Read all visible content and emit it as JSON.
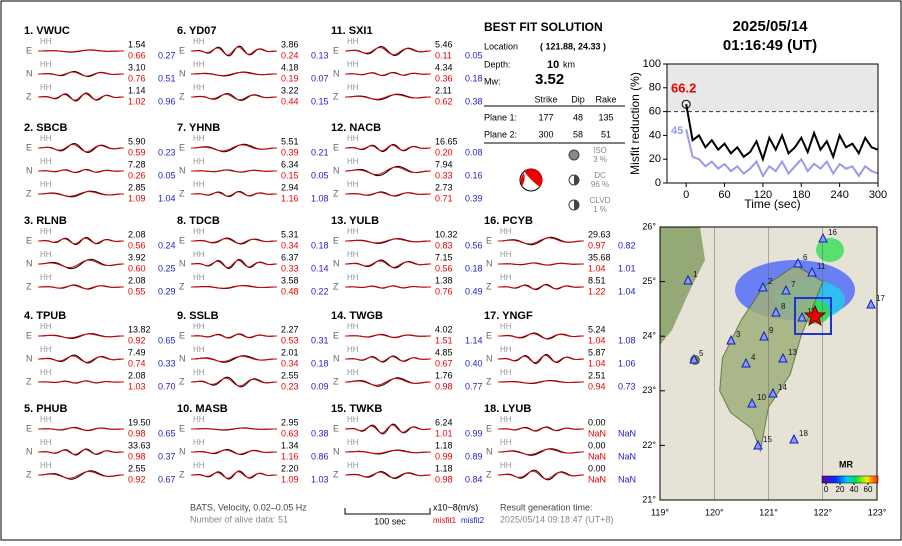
{
  "stations": [
    {
      "label": "1.  VWUC",
      "rows": [
        [
          "1.54",
          "0.66",
          "0.27"
        ],
        [
          "3.10",
          "0.76",
          "0.51"
        ],
        [
          "1.14",
          "1.02",
          "0.96"
        ]
      ]
    },
    {
      "label": "2.  SBCB",
      "rows": [
        [
          "5.90",
          "0.59",
          "0.23"
        ],
        [
          "7.28",
          "0.26",
          "0.05"
        ],
        [
          "2.85",
          "1.09",
          "1.04"
        ]
      ]
    },
    {
      "label": "3.  RLNB",
      "rows": [
        [
          "2.08",
          "0.56",
          "0.24"
        ],
        [
          "3.92",
          "0.60",
          "0.25"
        ],
        [
          "2.08",
          "0.55",
          "0.29"
        ]
      ]
    },
    {
      "label": "4.  TPUB",
      "rows": [
        [
          "13.82",
          "0.92",
          "0.65"
        ],
        [
          "7.49",
          "0.74",
          "0.33"
        ],
        [
          "2.08",
          "1.03",
          "0.70"
        ]
      ]
    },
    {
      "label": "5.  PHUB",
      "rows": [
        [
          "19.50",
          "0.98",
          "0.65"
        ],
        [
          "33.63",
          "0.98",
          "0.37"
        ],
        [
          "2.55",
          "0.92",
          "0.67"
        ]
      ]
    },
    {
      "label": "6.  YD07",
      "rows": [
        [
          "3.86",
          "0.24",
          "0.13"
        ],
        [
          "4.18",
          "0.19",
          "0.07"
        ],
        [
          "3.22",
          "0.44",
          "0.15"
        ]
      ]
    },
    {
      "label": "7.  YHNB",
      "rows": [
        [
          "5.51",
          "0.39",
          "0.21"
        ],
        [
          "6.34",
          "0.15",
          "0.05"
        ],
        [
          "2.94",
          "1.16",
          "1.08"
        ]
      ]
    },
    {
      "label": "8.  TDCB",
      "rows": [
        [
          "5.31",
          "0.34",
          "0.18"
        ],
        [
          "6.37",
          "0.33",
          "0.14"
        ],
        [
          "3.58",
          "0.48",
          "0.22"
        ]
      ]
    },
    {
      "label": "9.  SSLB",
      "rows": [
        [
          "2.27",
          "0.53",
          "0.31"
        ],
        [
          "2.01",
          "0.34",
          "0.18"
        ],
        [
          "2.55",
          "0.23",
          "0.09"
        ]
      ]
    },
    {
      "label": "10.  MASB",
      "rows": [
        [
          "2.95",
          "0.63",
          "0.38"
        ],
        [
          "1.34",
          "1.16",
          "0.86"
        ],
        [
          "2.20",
          "1.09",
          "1.03"
        ]
      ]
    },
    {
      "label": "11.  SXI1",
      "rows": [
        [
          "5.46",
          "0.11",
          "0.05"
        ],
        [
          "4.34",
          "0.36",
          "0.18"
        ],
        [
          "2.11",
          "0.62",
          "0.38"
        ]
      ]
    },
    {
      "label": "12.  NACB",
      "rows": [
        [
          "16.65",
          "0.20",
          "0.08"
        ],
        [
          "7.94",
          "0.33",
          "0.16"
        ],
        [
          "2.73",
          "0.71",
          "0.39"
        ]
      ]
    },
    {
      "label": "13.  YULB",
      "rows": [
        [
          "10.32",
          "0.83",
          "0.56"
        ],
        [
          "7.15",
          "0.56",
          "0.18"
        ],
        [
          "1.38",
          "0.76",
          "0.49"
        ]
      ]
    },
    {
      "label": "14.  TWGB",
      "rows": [
        [
          "4.02",
          "1.51",
          "1.14"
        ],
        [
          "4.85",
          "0.67",
          "0.40"
        ],
        [
          "1.76",
          "0.98",
          "0.77"
        ]
      ]
    },
    {
      "label": "15.  TWKB",
      "rows": [
        [
          "6.24",
          "1.01",
          "0.99"
        ],
        [
          "1.18",
          "0.99",
          "0.89"
        ],
        [
          "1.18",
          "0.98",
          "0.84"
        ]
      ]
    },
    {
      "label": "16.  PCYB",
      "rows": [
        [
          "29.63",
          "0.97",
          "0.82"
        ],
        [
          "35.68",
          "1.04",
          "1.01"
        ],
        [
          "8.51",
          "1.22",
          "1.04"
        ]
      ]
    },
    {
      "label": "17.  YNGF",
      "rows": [
        [
          "5.24",
          "1.04",
          "1.08"
        ],
        [
          "5.87",
          "1.04",
          "1.06"
        ],
        [
          "2.51",
          "0.94",
          "0.73"
        ]
      ]
    },
    {
      "label": "18.  LYUB",
      "rows": [
        [
          "0.00",
          "NaN",
          "NaN"
        ],
        [
          "0.00",
          "NaN",
          "NaN"
        ],
        [
          "0.00",
          "NaN",
          "NaN"
        ]
      ]
    }
  ],
  "components": [
    "E",
    "N",
    "Z"
  ],
  "channel": "HH",
  "solution": {
    "title": "BEST FIT SOLUTION",
    "location_label": "Location",
    "location": "( 121.88,  24.33 )",
    "depth_label": "Depth:",
    "depth": "10",
    "depth_unit": "km",
    "mw_label": "Mw:",
    "mw": "3.52",
    "headers": [
      "Strike",
      "Dip",
      "Rake"
    ],
    "planes": [
      {
        "label": "Plane 1:",
        "values": [
          "177",
          "48",
          "135"
        ]
      },
      {
        "label": "Plane 2:",
        "values": [
          "300",
          "58",
          "51"
        ]
      }
    ],
    "components": [
      {
        "name": "ISO",
        "pct": "3 %"
      },
      {
        "name": "DC",
        "pct": "96 %"
      },
      {
        "name": "CLVD",
        "pct": "1 %"
      }
    ]
  },
  "header": {
    "date": "2025/05/14",
    "time": "01:16:49  (UT)"
  },
  "footer": {
    "filter": "BATS, Velocity, 0.02–0.05 Hz",
    "alive": "Number of alive data: 51",
    "scale": "100 sec",
    "units": "x10−8(m/s)",
    "misfit1": "misfit1",
    "misfit2": "misfit2",
    "gen_label": "Result generation time:",
    "gen_time": "2025/05/14 09:18:47  (UT+8)"
  },
  "chart_data": {
    "type": "line",
    "xlabel": "Time (sec)",
    "ylabel": "Misfit reduction (%)",
    "x": [
      0,
      10,
      20,
      30,
      40,
      50,
      60,
      70,
      80,
      90,
      100,
      110,
      120,
      130,
      140,
      150,
      160,
      170,
      180,
      190,
      200,
      210,
      220,
      230,
      240,
      250,
      260,
      270,
      280,
      290,
      300
    ],
    "series": [
      {
        "color": "#000000",
        "values": [
          66.2,
          36,
          40,
          30,
          36,
          28,
          33,
          25,
          30,
          22,
          26,
          35,
          20,
          38,
          28,
          40,
          25,
          30,
          38,
          26,
          42,
          28,
          35,
          22,
          40,
          30,
          33,
          25,
          38,
          30,
          28
        ]
      },
      {
        "color": "#9999ee",
        "values": [
          45,
          22,
          20,
          14,
          18,
          12,
          16,
          10,
          14,
          8,
          12,
          18,
          6,
          14,
          10,
          18,
          8,
          14,
          20,
          10,
          16,
          12,
          18,
          8,
          16,
          12,
          14,
          6,
          14,
          10,
          8
        ]
      }
    ],
    "annotations": [
      "66.2",
      "45"
    ],
    "threshold": 60,
    "xlim": [
      -30,
      300
    ],
    "ylim": [
      0,
      100
    ],
    "xticks": [
      0,
      60,
      120,
      180,
      240,
      300
    ],
    "yticks": [
      0,
      20,
      40,
      60,
      80,
      100
    ]
  },
  "map": {
    "xticks": [
      {
        "value": 119,
        "label": "119°"
      },
      {
        "value": 120,
        "label": "120°"
      },
      {
        "value": 121,
        "label": "121°"
      },
      {
        "value": 122,
        "label": "122°"
      },
      {
        "value": 123,
        "label": "123°"
      }
    ],
    "yticks": [
      {
        "value": 21,
        "label": "21°"
      },
      {
        "value": 22,
        "label": "22°"
      },
      {
        "value": 23,
        "label": "23°"
      },
      {
        "value": 24,
        "label": "24°"
      },
      {
        "value": 25,
        "label": "25°"
      },
      {
        "value": 26,
        "label": "26°"
      }
    ],
    "station_labels": [
      "1",
      "2",
      "3",
      "4",
      "5",
      "6",
      "7",
      "8",
      "9",
      "10",
      "11",
      "12",
      "13",
      "14",
      "15",
      "16",
      "17",
      "18"
    ],
    "colorbar_title": "MR",
    "colorbar_ticks": [
      0,
      20,
      40,
      60
    ]
  }
}
